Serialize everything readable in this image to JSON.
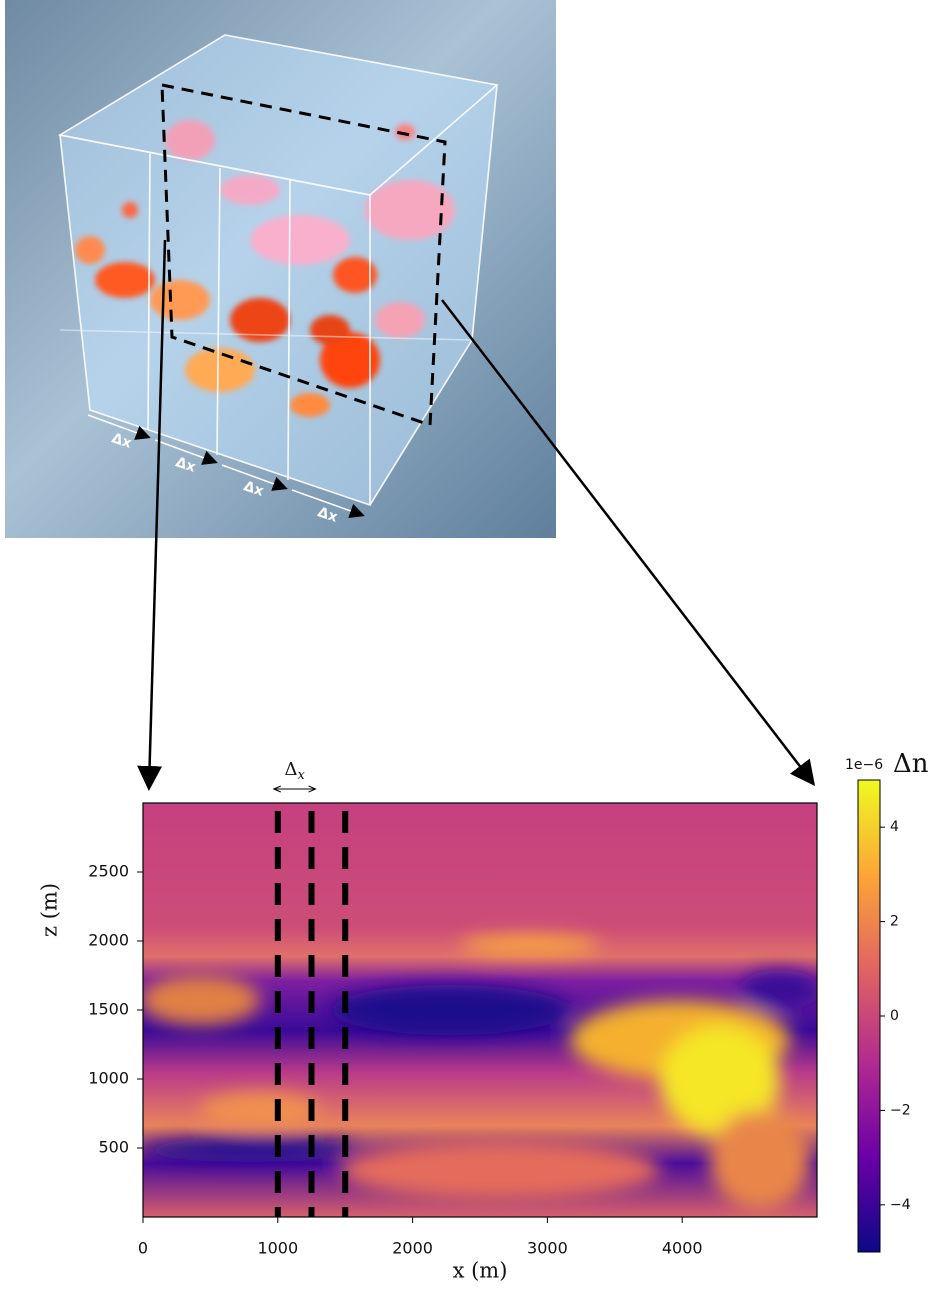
{
  "render": {
    "dx_labels": [
      "Δx",
      "Δx",
      "Δx",
      "Δx"
    ]
  },
  "chart_data": {
    "type": "heatmap",
    "xlabel": "x (m)",
    "ylabel": "z (m)",
    "xlim": [
      0,
      5000
    ],
    "ylim": [
      0,
      3000
    ],
    "xticks": [
      0,
      1000,
      2000,
      3000,
      4000
    ],
    "yticks": [
      500,
      1000,
      1500,
      2000,
      2500
    ],
    "dashed_x": [
      1000,
      1250,
      1500
    ],
    "annotation": {
      "text": "Δ",
      "subscript": "x"
    },
    "colormap": "plasma",
    "colorbar": {
      "label": "Δn",
      "scale_label": "1e−6",
      "lim": [
        -5,
        5
      ],
      "ticks": [
        {
          "value": -4,
          "label": "−4"
        },
        {
          "value": -2,
          "label": "−2"
        },
        0,
        2,
        4
      ]
    }
  }
}
